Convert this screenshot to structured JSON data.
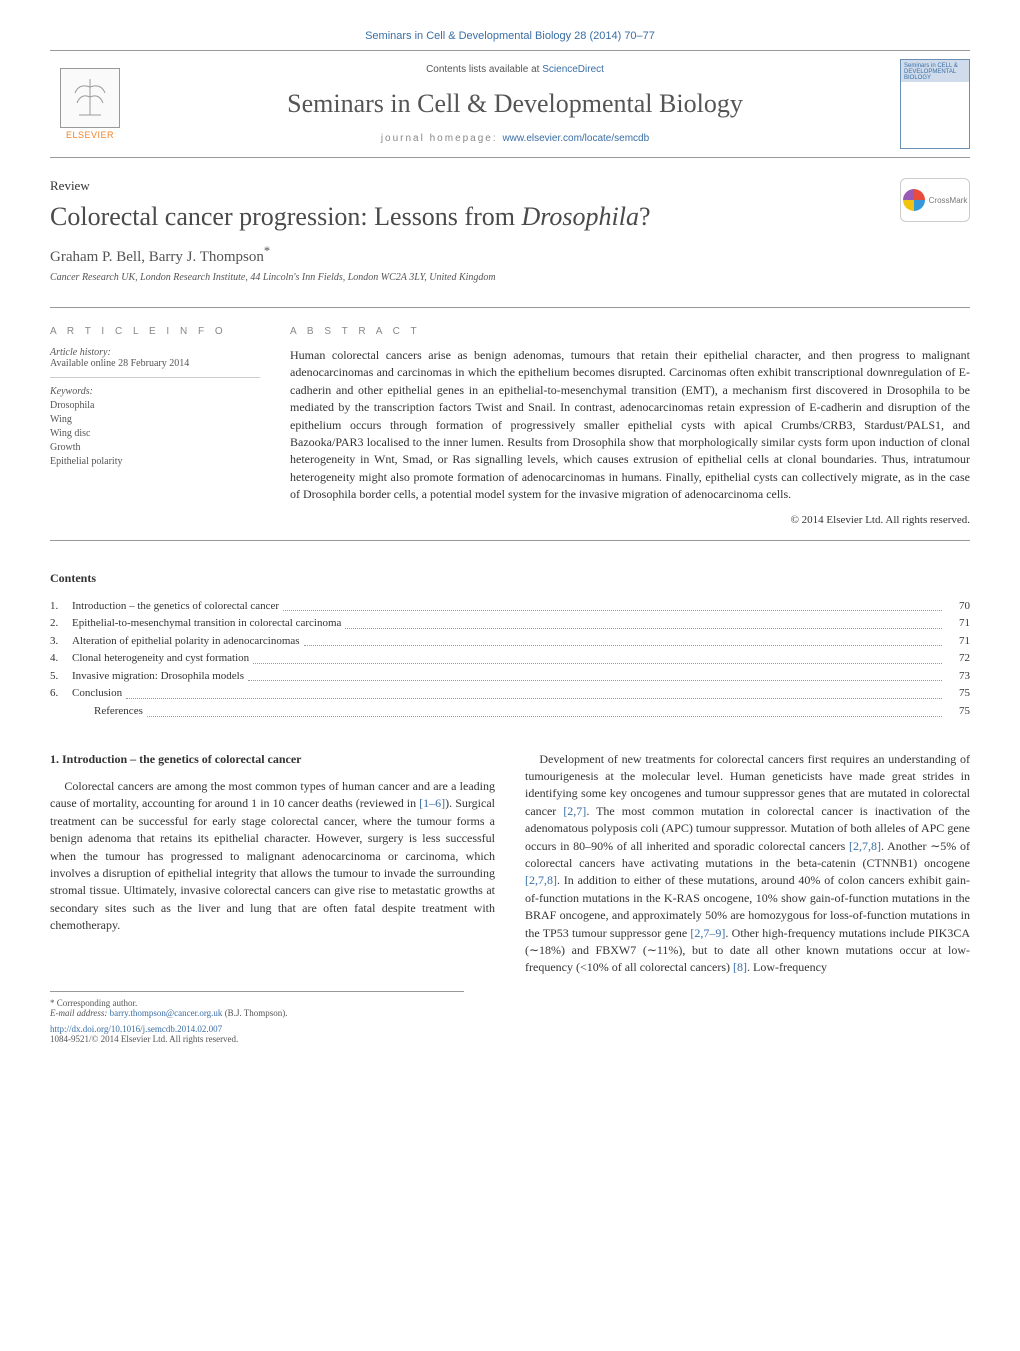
{
  "header": {
    "citation": "Seminars in Cell & Developmental Biology 28 (2014) 70–77",
    "contents_prefix": "Contents lists available at ",
    "contents_link": "ScienceDirect",
    "journal_title": "Seminars in Cell & Developmental Biology",
    "homepage_prefix": "journal homepage: ",
    "homepage_url": "www.elsevier.com/locate/semcdb",
    "publisher_label": "ELSEVIER",
    "cover_text": "Seminars in CELL & DEVELOPMENTAL BIOLOGY"
  },
  "article": {
    "type": "Review",
    "title_pre": "Colorectal cancer progression: Lessons from ",
    "title_em": "Drosophila",
    "title_post": "?",
    "authors": "Graham P. Bell, Barry J. Thompson",
    "corr_marker": "*",
    "affiliation": "Cancer Research UK, London Research Institute, 44 Lincoln's Inn Fields, London WC2A 3LY, United Kingdom",
    "crossmark_label": "CrossMark"
  },
  "info": {
    "heading": "a r t i c l e   i n f o",
    "history_label": "Article history:",
    "history_line": "Available online 28 February 2014",
    "keywords_label": "Keywords:",
    "keywords": [
      "Drosophila",
      "Wing",
      "Wing disc",
      "Growth",
      "Epithelial polarity"
    ]
  },
  "abstract": {
    "heading": "a b s t r a c t",
    "body": "Human colorectal cancers arise as benign adenomas, tumours that retain their epithelial character, and then progress to malignant adenocarcinomas and carcinomas in which the epithelium becomes disrupted. Carcinomas often exhibit transcriptional downregulation of E-cadherin and other epithelial genes in an epithelial-to-mesenchymal transition (EMT), a mechanism first discovered in Drosophila to be mediated by the transcription factors Twist and Snail. In contrast, adenocarcinomas retain expression of E-cadherin and disruption of the epithelium occurs through formation of progressively smaller epithelial cysts with apical Crumbs/CRB3, Stardust/PALS1, and Bazooka/PAR3 localised to the inner lumen. Results from Drosophila show that morphologically similar cysts form upon induction of clonal heterogeneity in Wnt, Smad, or Ras signalling levels, which causes extrusion of epithelial cells at clonal boundaries. Thus, intratumour heterogeneity might also promote formation of adenocarcinomas in humans. Finally, epithelial cysts can collectively migrate, as in the case of Drosophila border cells, a potential model system for the invasive migration of adenocarcinoma cells.",
    "copyright": "© 2014 Elsevier Ltd. All rights reserved."
  },
  "contents": {
    "heading": "Contents",
    "items": [
      {
        "num": "1.",
        "title": "Introduction – the genetics of colorectal cancer",
        "page": "70"
      },
      {
        "num": "2.",
        "title": "Epithelial-to-mesenchymal transition in colorectal carcinoma",
        "page": "71"
      },
      {
        "num": "3.",
        "title": "Alteration of epithelial polarity in adenocarcinomas",
        "page": "71"
      },
      {
        "num": "4.",
        "title": "Clonal heterogeneity and cyst formation",
        "page": "72"
      },
      {
        "num": "5.",
        "title": "Invasive migration: Drosophila models",
        "page": "73"
      },
      {
        "num": "6.",
        "title": "Conclusion",
        "page": "75"
      },
      {
        "num": "",
        "title": "References",
        "page": "75",
        "indent": true
      }
    ]
  },
  "body": {
    "section1_heading": "1. Introduction – the genetics of colorectal cancer",
    "para1": "Colorectal cancers are among the most common types of human cancer and are a leading cause of mortality, accounting for around 1 in 10 cancer deaths (reviewed in ",
    "para1_cite": "[1–6]",
    "para1_post": "). Surgical treatment can be successful for early stage colorectal cancer, where the tumour forms a benign adenoma that retains its epithelial character. However, surgery is less successful when the tumour has progressed to malignant adenocarcinoma or carcinoma, which involves a disruption of epithelial integrity that allows the tumour to invade the surrounding stromal tissue. Ultimately, invasive colorectal cancers can give rise to metastatic growths at secondary sites such as the liver and lung that are often fatal despite treatment with chemotherapy.",
    "para2_a": "Development of new treatments for colorectal cancers first requires an understanding of tumourigenesis at the molecular level. Human geneticists have made great strides in identifying some key oncogenes and tumour suppressor genes that are mutated in colorectal cancer ",
    "para2_cite1": "[2,7]",
    "para2_b": ". The most common mutation in colorectal cancer is inactivation of the adenomatous polyposis coli (APC) tumour suppressor. Mutation of both alleles of APC gene occurs in 80–90% of all inherited and sporadic colorectal cancers ",
    "para2_cite2": "[2,7,8]",
    "para2_c": ". Another ∼5% of colorectal cancers have activating mutations in the beta-catenin (CTNNB1) oncogene ",
    "para2_cite3": "[2,7,8]",
    "para2_d": ". In addition to either of these mutations, around 40% of colon cancers exhibit gain-of-function mutations in the K-RAS oncogene, 10% show gain-of-function mutations in the BRAF oncogene, and approximately 50% are homozygous for loss-of-function mutations in the TP53 tumour suppressor gene ",
    "para2_cite4": "[2,7–9]",
    "para2_e": ". Other high-frequency mutations include PIK3CA (∼18%) and FBXW7 (∼11%), but to date all other known mutations occur at low-frequency (<10% of all colorectal cancers) ",
    "para2_cite5": "[8]",
    "para2_f": ". Low-frequency"
  },
  "footnotes": {
    "corr_label": "* Corresponding author.",
    "email_label": "E-mail address: ",
    "email": "barry.thompson@cancer.org.uk",
    "email_person": " (B.J. Thompson).",
    "doi": "http://dx.doi.org/10.1016/j.semcdb.2014.02.007",
    "issn_line": "1084-9521/© 2014 Elsevier Ltd. All rights reserved."
  },
  "colors": {
    "link": "#3a6ea5",
    "publisher_orange": "#f58220",
    "text": "#333333",
    "muted": "#888888",
    "rule": "#999999"
  }
}
